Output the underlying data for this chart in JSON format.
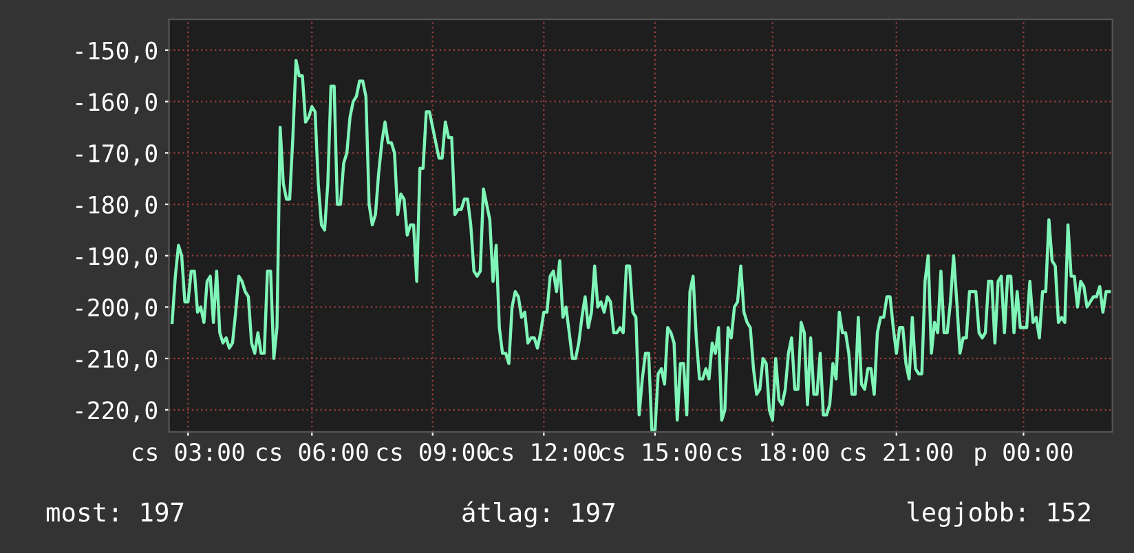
{
  "chart_data": {
    "type": "line",
    "categories": [
      null,
      null,
      null,
      null,
      null,
      "cs 03:00",
      null,
      null,
      null,
      null,
      null,
      null,
      null,
      null,
      null,
      null,
      null,
      null,
      null,
      null,
      null,
      null,
      null,
      null,
      null,
      null,
      null,
      null,
      null,
      null,
      null,
      null,
      null,
      null,
      null,
      null,
      null,
      null,
      null,
      null,
      null,
      null,
      null,
      null,
      "cs 06:00",
      null,
      null,
      null,
      null,
      null,
      null,
      null,
      null,
      null,
      null,
      null,
      null,
      null,
      null,
      null,
      null,
      null,
      null,
      null,
      null,
      null,
      null,
      null,
      null,
      null,
      null,
      null,
      null,
      null,
      null,
      null,
      null,
      null,
      null,
      null,
      null,
      null,
      "cs 09:00",
      null,
      null,
      null,
      null,
      null,
      null,
      null,
      null,
      null,
      null,
      null,
      null,
      null,
      null,
      null,
      null,
      null,
      null,
      null,
      null,
      null,
      null,
      null,
      null,
      null,
      null,
      null,
      null,
      null,
      null,
      null,
      null,
      null,
      null,
      "cs 12:00",
      null,
      null,
      null,
      null,
      null,
      null,
      null,
      null,
      null,
      null,
      null,
      null,
      null,
      null,
      null,
      null,
      null,
      null,
      null,
      null,
      null,
      null,
      null,
      null,
      null,
      null,
      null,
      null,
      null,
      null,
      null,
      null,
      null,
      null,
      "cs 15:00",
      null,
      null,
      null,
      null,
      null,
      null,
      null,
      null,
      null,
      null,
      null,
      null,
      null,
      null,
      null,
      null,
      null,
      null,
      null,
      null,
      null,
      null,
      null,
      null,
      null,
      null,
      null,
      null,
      null,
      null,
      null,
      null,
      null,
      null,
      null,
      null,
      "cs 18:00",
      null,
      null,
      null,
      null,
      null,
      null,
      null,
      null,
      null,
      null,
      null,
      null,
      null,
      null,
      null,
      null,
      null,
      null,
      null,
      null,
      null,
      null,
      null,
      null,
      null,
      null,
      null,
      null,
      null,
      null,
      null,
      null,
      null,
      null,
      null,
      null,
      null,
      null,
      "cs 21:00",
      null,
      null,
      null,
      null,
      null,
      null,
      null,
      null,
      null,
      null,
      null,
      null,
      null,
      null,
      null,
      null,
      null,
      null,
      null,
      null,
      null,
      null,
      null,
      null,
      null,
      null,
      null,
      null,
      null,
      null,
      null,
      null,
      null,
      null,
      null,
      null,
      null,
      null,
      null,
      "p 00:00",
      null,
      null,
      null,
      null,
      null,
      null,
      null,
      null,
      null,
      null,
      null,
      null,
      null,
      null,
      null,
      null,
      null,
      null,
      null,
      null,
      null,
      null,
      null,
      null,
      null,
      null,
      null
    ],
    "series": [
      {
        "color": "#7ff5b8",
        "values": [
          -203,
          -194,
          -188,
          -190,
          -199,
          -199,
          -193,
          -193,
          -201,
          -200,
          -203,
          -195,
          -194,
          -203,
          -193,
          -205,
          -207,
          -206,
          -208,
          -207,
          -201,
          -194,
          -195,
          -197,
          -198,
          -207,
          -209,
          -205,
          -209,
          -209,
          -193,
          -193,
          -210,
          -204,
          -165,
          -176,
          -179,
          -179,
          -167,
          -152,
          -155,
          -155,
          -164,
          -163,
          -161,
          -162,
          -176,
          -184,
          -185,
          -176,
          -157,
          -157,
          -180,
          -180,
          -172,
          -170,
          -163,
          -160,
          -159,
          -156,
          -156,
          -159,
          -180,
          -184,
          -182,
          -174,
          -168,
          -164,
          -168,
          -168,
          -170,
          -182,
          -178,
          -179,
          -186,
          -184,
          -184,
          -195,
          -173,
          -173,
          -162,
          -162,
          -165,
          -168,
          -171,
          -171,
          -164,
          -167,
          -167,
          -182,
          -181,
          -181,
          -179,
          -179,
          -184,
          -193,
          -194,
          -193,
          -177,
          -180,
          -183,
          -195,
          -188,
          -204,
          -209,
          -209,
          -211,
          -200,
          -197,
          -198,
          -202,
          -201,
          -207,
          -206,
          -206,
          -208,
          -205,
          -201,
          -201,
          -194,
          -193,
          -197,
          -191,
          -202,
          -200,
          -205,
          -210,
          -210,
          -207,
          -202,
          -198,
          -204,
          -201,
          -192,
          -200,
          -199,
          -201,
          -198,
          -199,
          -205,
          -205,
          -204,
          -205,
          -192,
          -192,
          -201,
          -202,
          -221,
          -214,
          -209,
          -209,
          -224,
          -224,
          -213,
          -212,
          -215,
          -204,
          -205,
          -207,
          -222,
          -211,
          -211,
          -221,
          -197,
          -194,
          -206,
          -214,
          -214,
          -212,
          -214,
          -207,
          -209,
          -204,
          -222,
          -220,
          -204,
          -206,
          -200,
          -199,
          -192,
          -201,
          -203,
          -204,
          -212,
          -217,
          -216,
          -210,
          -211,
          -220,
          -222,
          -210,
          -218,
          -219,
          -216,
          -209,
          -206,
          -216,
          -216,
          -203,
          -205,
          -219,
          -206,
          -217,
          -217,
          -209,
          -221,
          -221,
          -219,
          -211,
          -214,
          -201,
          -205,
          -205,
          -209,
          -217,
          -217,
          -202,
          -215,
          -216,
          -212,
          -212,
          -217,
          -205,
          -202,
          -202,
          -198,
          -198,
          -204,
          -209,
          -204,
          -204,
          -211,
          -214,
          -202,
          -212,
          -213,
          -213,
          -195,
          -190,
          -209,
          -203,
          -205,
          -193,
          -205,
          -205,
          -199,
          -190,
          -199,
          -209,
          -206,
          -206,
          -197,
          -197,
          -197,
          -205,
          -206,
          -205,
          -195,
          -195,
          -207,
          -195,
          -194,
          -205,
          -194,
          -194,
          -205,
          -197,
          -204,
          -204,
          -204,
          -195,
          -203,
          -202,
          -206,
          -197,
          -197,
          -183,
          -191,
          -192,
          -203,
          -202,
          -203,
          -184,
          -194,
          -194,
          -200,
          -195,
          -196,
          -200,
          -199,
          -198,
          -198,
          -196,
          -201,
          -197,
          -197
        ]
      }
    ],
    "ylim": [
      -224.3,
      -144
    ],
    "yticks": [
      {
        "value": -220,
        "label": "-220,0"
      },
      {
        "value": -210,
        "label": "-210,0"
      },
      {
        "value": -200,
        "label": "-200,0"
      },
      {
        "value": -190,
        "label": "-190,0"
      },
      {
        "value": -180,
        "label": "-180,0"
      },
      {
        "value": -170,
        "label": "-170,0"
      },
      {
        "value": -160,
        "label": "-160,0"
      },
      {
        "value": -150,
        "label": "-150,0"
      }
    ],
    "grid": true,
    "annotations": [
      "most: 197",
      "átlag: 197",
      "legjobb: 152"
    ]
  }
}
